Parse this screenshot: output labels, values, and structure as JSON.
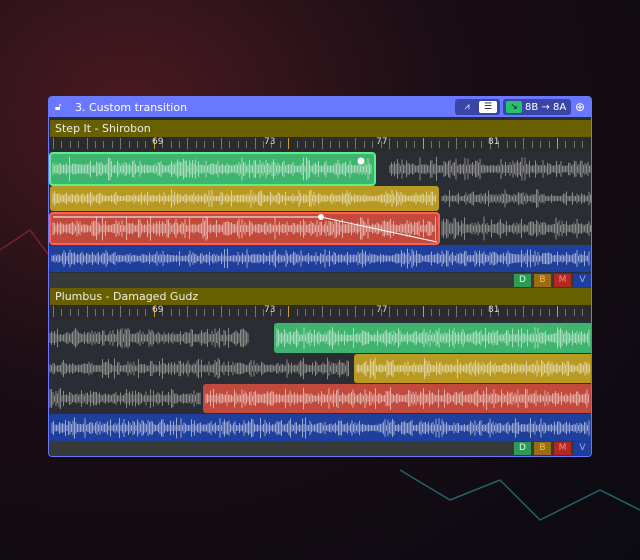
{
  "window": {
    "title": "3. Custom transition",
    "lock_icon": "unlock-icon"
  },
  "toolbar": {
    "waveform_icon": "waveform-icon",
    "list_icon": "list-icon",
    "key_icon": "arrow-down-right-icon",
    "key_change": "8B → 8A",
    "zoom_icon": "zoom-in-icon"
  },
  "colors": {
    "accent": "#6a78ff",
    "green": "#3fb46f",
    "gold": "#b89a22",
    "red": "#c24a3c",
    "blue": "#1f3f9c",
    "gray": "#7a7a7a",
    "section": "#686000"
  },
  "ruler_labels": [
    "69",
    "73",
    "77",
    "81"
  ],
  "sections": [
    {
      "title": "Step It - Shirobon",
      "footer_buttons": [
        "D",
        "B",
        "M",
        "V"
      ]
    },
    {
      "title": "Plumbus - Damaged Gudz",
      "footer_buttons": [
        "D",
        "B",
        "M",
        "V"
      ]
    }
  ]
}
